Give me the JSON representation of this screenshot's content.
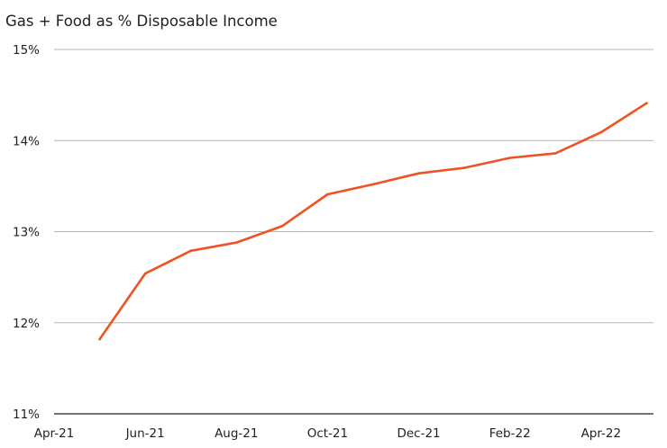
{
  "chart_data": {
    "type": "line",
    "title": "Gas + Food as % Disposable Income",
    "xlabel": "",
    "ylabel": "",
    "x": [
      "May-21",
      "Jun-21",
      "Jul-21",
      "Aug-21",
      "Sep-21",
      "Oct-21",
      "Nov-21",
      "Dec-21",
      "Jan-22",
      "Feb-22",
      "Mar-22",
      "Apr-22",
      "May-22"
    ],
    "series": [
      {
        "values": [
          11.82,
          12.54,
          12.79,
          12.88,
          13.06,
          13.41,
          13.52,
          13.64,
          13.7,
          13.81,
          13.86,
          14.09,
          14.41
        ]
      }
    ],
    "x_tick_labels": [
      "Apr-21",
      "Jun-21",
      "Aug-21",
      "Oct-21",
      "Dec-21",
      "Feb-22",
      "Apr-22"
    ],
    "y_tick_labels": [
      "11%",
      "12%",
      "13%",
      "14%",
      "15%"
    ],
    "ylim": [
      11,
      15
    ],
    "grid": "horizontal",
    "legend": "none",
    "colors": {
      "line": "#f05323",
      "grid": "#b3b3b3",
      "text": "#222222"
    }
  }
}
